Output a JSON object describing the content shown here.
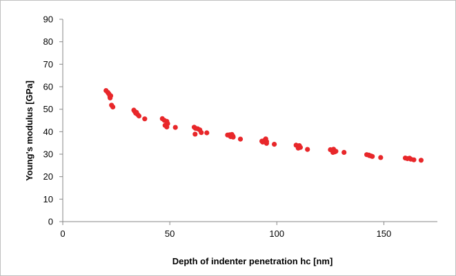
{
  "chart_data": {
    "type": "scatter",
    "title": "",
    "xlabel": "Depth of indenter penetration hc [nm]",
    "ylabel": "Young's modulus [GPa]",
    "xlim": [
      0,
      175
    ],
    "ylim": [
      0,
      90
    ],
    "xticks": [
      0,
      50,
      100,
      150
    ],
    "yticks": [
      0,
      10,
      20,
      30,
      40,
      50,
      60,
      70,
      80,
      90
    ],
    "xtick_labels": [
      "0",
      "50",
      "100",
      "150"
    ],
    "ytick_labels": [
      "0",
      "10",
      "20",
      "30",
      "40",
      "50",
      "60",
      "70",
      "80",
      "90"
    ],
    "grid": false,
    "legend": "none",
    "marker_color": "#e8272a",
    "series": [
      {
        "x": [
          20.2,
          21.0,
          21.6,
          22.0,
          22.4,
          22.1,
          21.4,
          22.8,
          23.4,
          33.2,
          33.6,
          34.1,
          35.0,
          35.6,
          34.4,
          38.3,
          46.5,
          47.5,
          48.6,
          49.0,
          47.8,
          48.6,
          52.6,
          61.4,
          62.0,
          63.0,
          64.0,
          64.7,
          61.8,
          67.3,
          77.0,
          78.0,
          79.0,
          79.5,
          79.6,
          78.4,
          83.0,
          93.0,
          94.0,
          94.8,
          95.2,
          93.4,
          95.2,
          98.8,
          109.0,
          110.0,
          110.5,
          111.0,
          110.0,
          114.3,
          125.0,
          126.0,
          126.5,
          127.0,
          127.6,
          126.2,
          131.4,
          142.0,
          143.0,
          144.0,
          144.6,
          143.2,
          148.5,
          160.0,
          161.0,
          162.0,
          162.6,
          164.0,
          167.4
        ],
        "y": [
          58.3,
          57.5,
          56.8,
          55.6,
          56.0,
          55.0,
          57.0,
          51.8,
          51.0,
          49.6,
          49.0,
          48.2,
          47.6,
          47.0,
          48.6,
          45.7,
          45.8,
          45.0,
          44.6,
          43.6,
          42.8,
          42.1,
          41.9,
          42.0,
          41.5,
          41.3,
          40.8,
          39.6,
          38.9,
          39.5,
          38.5,
          38.6,
          38.8,
          38.0,
          37.6,
          37.8,
          36.7,
          35.8,
          36.0,
          36.8,
          35.6,
          35.4,
          34.8,
          34.4,
          34.0,
          33.5,
          33.8,
          33.0,
          32.7,
          32.1,
          32.0,
          31.6,
          32.2,
          31.0,
          31.3,
          30.8,
          30.8,
          29.8,
          29.6,
          29.2,
          29.0,
          29.4,
          28.5,
          28.3,
          28.0,
          28.2,
          27.8,
          27.5,
          27.3
        ]
      }
    ]
  }
}
